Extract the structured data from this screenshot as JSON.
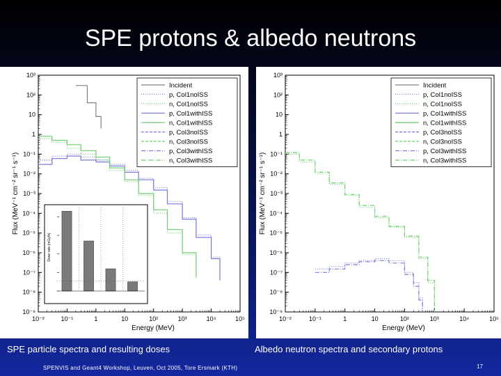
{
  "slide": {
    "title": "SPE protons & albedo neutrons",
    "left_caption": "SPE particle spectra and resulting doses",
    "right_caption": "Albedo neutron spectra and secondary protons",
    "footer": "SPENVIS and Geant4 Workshop,   Leuven,   Oct 2005,   Tore Ersmark (KTH)",
    "page_number": "17"
  },
  "colors": {
    "incident": "#808080",
    "protons": "#7b7bd8",
    "neutrons": "#6ccf6c",
    "bar": "#7a7a7a"
  },
  "chart_data": [
    {
      "type": "line",
      "xlabel": "Energy (MeV)",
      "ylabel": "Flux (MeV⁻¹ cm⁻² sr⁻¹ s⁻¹)",
      "xscale": "log",
      "yscale": "log",
      "xlim": [
        0.01,
        100000
      ],
      "ylim": [
        1e-09,
        1000
      ],
      "x_tick_labels": [
        "10⁻²",
        "10⁻¹",
        "1",
        "10",
        "10²",
        "10³",
        "10⁴",
        "10⁵"
      ],
      "y_tick_labels": [
        "10⁻⁹",
        "10⁻⁸",
        "10⁻⁷",
        "10⁻⁶",
        "10⁻⁵",
        "10⁻⁴",
        "10⁻³",
        "10⁻²",
        "10⁻¹",
        "1",
        "10",
        "10²",
        "10³"
      ],
      "legend_position": "top-right",
      "legend": [
        "Incident",
        "p, Col1noISS",
        "n, Col1noISS",
        "p, Col1withISS",
        "n, Col1withISS",
        "p, Col3noISS",
        "n, Col3noISS",
        "p, Col3withISS",
        "n, Col3withISS"
      ],
      "series": [
        {
          "name": "Incident",
          "color": "incident",
          "x": [
            0.2,
            0.5,
            1,
            1.5
          ],
          "y": [
            300,
            40,
            8,
            2
          ]
        },
        {
          "name": "p, Col1noISS",
          "color": "protons",
          "x": [
            0.01,
            0.03,
            0.1,
            0.3,
            1,
            3,
            10,
            30,
            100,
            300,
            1000,
            3000,
            10000,
            20000
          ],
          "y": [
            0.05,
            0.08,
            0.1,
            0.07,
            0.05,
            0.03,
            0.015,
            0.006,
            0.002,
            0.0004,
            6e-05,
            8e-06,
            6e-07,
            5e-08
          ]
        },
        {
          "name": "n, Col1noISS",
          "color": "neutrons",
          "x": [
            0.01,
            0.03,
            0.1,
            0.3,
            1,
            3,
            10,
            30,
            100,
            300,
            1000,
            3000
          ],
          "y": [
            0.6,
            0.4,
            0.2,
            0.1,
            0.05,
            0.015,
            0.004,
            0.0008,
            0.0001,
            1e-05,
            8e-07,
            5e-08
          ]
        },
        {
          "name": "p, Col1withISS",
          "color": "protons",
          "x": [
            0.01,
            0.03,
            0.1,
            0.3,
            1,
            3,
            10,
            30,
            100,
            300,
            1000,
            3000,
            10000,
            20000
          ],
          "y": [
            0.03,
            0.06,
            0.08,
            0.05,
            0.04,
            0.025,
            0.012,
            0.005,
            0.0015,
            0.0003,
            5e-05,
            6e-06,
            5e-07,
            4e-08
          ]
        },
        {
          "name": "n, Col1withISS",
          "color": "neutrons",
          "x": [
            0.01,
            0.03,
            0.1,
            0.3,
            1,
            3,
            10,
            30,
            100,
            300,
            1000,
            3000
          ],
          "y": [
            0.8,
            0.5,
            0.3,
            0.15,
            0.07,
            0.02,
            0.005,
            0.001,
            0.00015,
            1.5e-05,
            1e-06,
            6e-08
          ]
        }
      ],
      "inset": {
        "type": "bar",
        "ylabel": "Dose rate (mGy/h)",
        "values": [
          4.3,
          2.7,
          1.2,
          0.5
        ],
        "categories": [
          "",
          "",
          "",
          ""
        ]
      }
    },
    {
      "type": "line",
      "xlabel": "Energy (MeV)",
      "ylabel": "Flux (MeV⁻¹ cm⁻² sr⁻¹ s⁻¹)",
      "xscale": "log",
      "yscale": "log",
      "xlim": [
        0.01,
        100000
      ],
      "ylim": [
        1e-09,
        1000
      ],
      "x_tick_labels": [
        "10⁻²",
        "10⁻¹",
        "1",
        "10",
        "10²",
        "10³",
        "10⁴",
        "10⁵"
      ],
      "y_tick_labels": [
        "10⁻⁹",
        "10⁻⁸",
        "10⁻⁷",
        "10⁻⁶",
        "10⁻⁵",
        "10⁻⁴",
        "10⁻³",
        "10⁻²",
        "10⁻¹",
        "1",
        "10",
        "10²",
        "10³"
      ],
      "legend_position": "top-right",
      "legend": [
        "Incident",
        "p, Col1noISS",
        "n, Col1noISS",
        "p, Col1withISS",
        "n, Col1withISS",
        "p, Col3noISS",
        "n, Col3noISS",
        "p, Col3withISS",
        "n, Col3withISS"
      ],
      "series": [
        {
          "name": "n, Col1noISS",
          "color": "neutrons",
          "x": [
            0.01,
            0.03,
            0.1,
            0.3,
            1,
            3,
            10,
            30,
            100,
            300,
            600,
            1000
          ],
          "y": [
            0.1,
            0.04,
            0.01,
            0.003,
            0.0008,
            0.0002,
            6e-05,
            2e-05,
            6e-06,
            5e-07,
            3e-08,
            1e-09
          ]
        },
        {
          "name": "n, Col3withISS",
          "color": "neutrons",
          "x": [
            0.01,
            0.03,
            0.1,
            0.3,
            1,
            3,
            10,
            30,
            100,
            300,
            600,
            1000
          ],
          "y": [
            0.12,
            0.05,
            0.012,
            0.0035,
            0.0009,
            0.00025,
            7e-05,
            2.2e-05,
            7e-06,
            6e-07,
            4e-08,
            1e-09
          ]
        },
        {
          "name": "p, Col1noISS",
          "color": "protons",
          "x": [
            0.1,
            0.3,
            1,
            3,
            10,
            30,
            100,
            200,
            300,
            400
          ],
          "y": [
            1.5e-07,
            2e-07,
            3e-07,
            4e-07,
            5e-07,
            4e-07,
            1e-07,
            3e-08,
            5e-09,
            1e-09
          ]
        },
        {
          "name": "p, Col3withISS",
          "color": "protons",
          "x": [
            0.1,
            0.3,
            1,
            3,
            10,
            30,
            100,
            200,
            300,
            400
          ],
          "y": [
            1e-07,
            1.5e-07,
            2.5e-07,
            3.5e-07,
            4e-07,
            3e-07,
            8e-08,
            2e-08,
            4e-09,
            1e-09
          ]
        }
      ]
    }
  ]
}
